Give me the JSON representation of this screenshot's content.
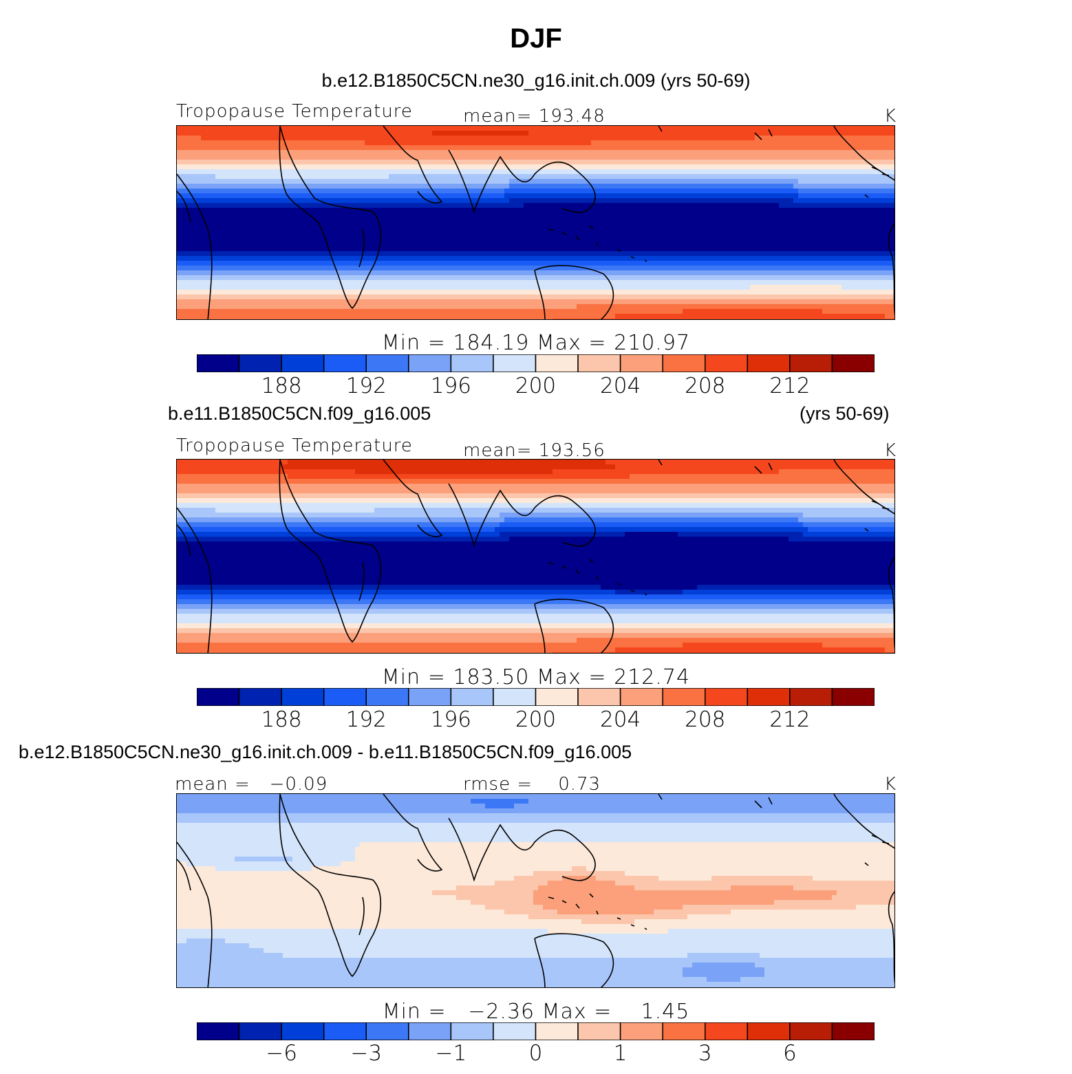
{
  "page_title": "DJF",
  "panels": [
    {
      "case_title": "b.e12.B1850C5CN.ne30_g16.init.ch.009 (yrs 50-69)",
      "variable": "Tropopause Temperature",
      "stat_left": "",
      "stat_center": "mean= 193.48",
      "units": "K",
      "minmax": "Min = 184.19 Max = 210.97",
      "field": "model"
    },
    {
      "case_title": "b.e11.B1850C5CN.f09_g16.005",
      "case_years": "(yrs 50-69)",
      "variable": "Tropopause Temperature",
      "stat_left": "",
      "stat_center": "mean= 193.56",
      "units": "K",
      "minmax": "Min = 183.50 Max = 212.74",
      "field": "control"
    },
    {
      "case_title": "b.e12.B1850C5CN.ne30_g16.init.ch.009 - b.e11.B1850C5CN.f09_g16.005",
      "variable": "",
      "stat_left": "mean =   −0.09",
      "stat_center": "rmse =    0.73",
      "units": "K",
      "minmax": "Min =   −2.36 Max =    1.45",
      "field": "difference"
    }
  ],
  "colorbar": {
    "colors": [
      "#00008b",
      "#0022b0",
      "#0040d8",
      "#1a5cf5",
      "#3c78f5",
      "#7aa3f8",
      "#a9c6fa",
      "#d4e5fb",
      "#fde9d9",
      "#fbc6ab",
      "#fba07a",
      "#fa7242",
      "#f5471d",
      "#de2f08",
      "#b71e05",
      "#8a0000"
    ],
    "abs_ticks": [
      "188",
      "192",
      "196",
      "200",
      "204",
      "208",
      "212"
    ],
    "diff_ticks": [
      "−6",
      "−3",
      "−1",
      "0",
      "1",
      "3",
      "6"
    ]
  },
  "chart_data": [
    {
      "type": "heatmap",
      "title": "b.e12.B1850C5CN.ne30_g16.init.ch.009 (yrs 50-69)",
      "variable": "Tropopause Temperature",
      "units": "K",
      "mean": 193.48,
      "min": 184.19,
      "max": 210.97,
      "levels": [
        186,
        188,
        190,
        192,
        194,
        196,
        198,
        200,
        202,
        204,
        206,
        208,
        210,
        212,
        214
      ],
      "region": "global map, 60S-60N"
    },
    {
      "type": "heatmap",
      "title": "b.e11.B1850C5CN.f09_g16.005 (yrs 50-69)",
      "variable": "Tropopause Temperature",
      "units": "K",
      "mean": 193.56,
      "min": 183.5,
      "max": 212.74,
      "levels": [
        186,
        188,
        190,
        192,
        194,
        196,
        198,
        200,
        202,
        204,
        206,
        208,
        210,
        212,
        214
      ],
      "region": "global map, 60S-60N"
    },
    {
      "type": "heatmap",
      "title": "b.e12.B1850C5CN.ne30_g16.init.ch.009 - b.e11.B1850C5CN.f09_g16.005",
      "units": "K",
      "mean": -0.09,
      "rmse": 0.73,
      "min": -2.36,
      "max": 1.45,
      "levels": [
        -8,
        -6,
        -4,
        -3,
        -2,
        -1,
        -0.5,
        0,
        0.5,
        1,
        2,
        3,
        4,
        6,
        8
      ],
      "region": "global map, 60S-60N"
    }
  ]
}
